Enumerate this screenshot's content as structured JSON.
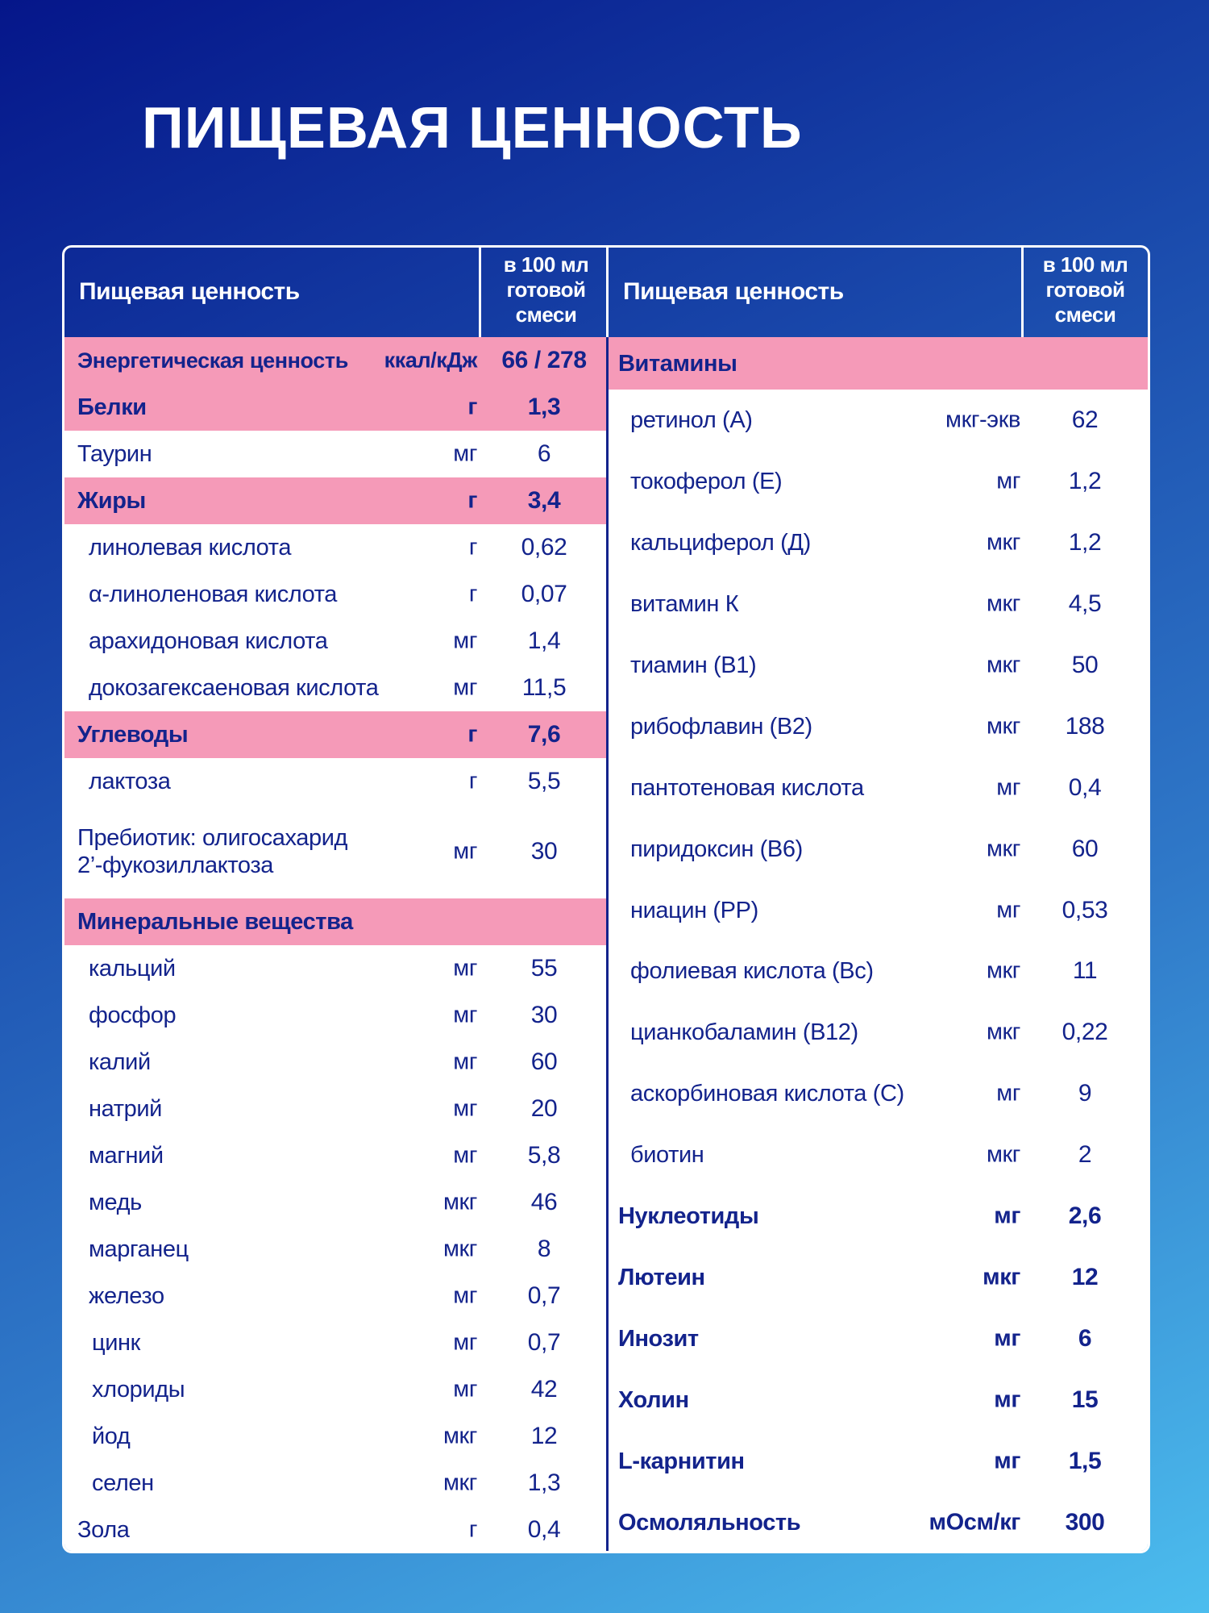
{
  "title": "ПИЩЕВАЯ ЦЕННОСТЬ",
  "colors": {
    "pink": "#f59ab8",
    "navy": "#13238c",
    "white": "#ffffff"
  },
  "left": {
    "header_label": "Пищевая ценность",
    "header_col": [
      "в 100 мл",
      "готовой",
      "смеси"
    ],
    "rows": [
      {
        "name": "Энергетическая ценность",
        "unit": "ккал/кДж",
        "value": "66 / 278",
        "type": "section"
      },
      {
        "name": "Белки",
        "unit": "г",
        "value": "1,3",
        "type": "section"
      },
      {
        "name": "Таурин",
        "unit": "мг",
        "value": "6",
        "type": "plain"
      },
      {
        "name": "Жиры",
        "unit": "г",
        "value": "3,4",
        "type": "section"
      },
      {
        "name": "линолевая кислота",
        "unit": "г",
        "value": "0,62",
        "type": "sub"
      },
      {
        "name": "α-линоленовая кислота",
        "unit": "г",
        "value": "0,07",
        "type": "sub"
      },
      {
        "name": "арахидоновая кислота",
        "unit": "мг",
        "value": "1,4",
        "type": "sub"
      },
      {
        "name": "докозагексаеновая кислота",
        "unit": "мг",
        "value": "11,5",
        "type": "sub"
      },
      {
        "name": "Углеводы",
        "unit": "г",
        "value": "7,6",
        "type": "section"
      },
      {
        "name": "лактоза",
        "unit": "г",
        "value": "5,5",
        "type": "sub"
      },
      {
        "name": "Пребиотик: олигосахарид\n2’-фукозиллактоза",
        "unit": "мг",
        "value": "30",
        "type": "plain2"
      },
      {
        "name": "Минеральные вещества",
        "unit": "",
        "value": "",
        "type": "section"
      },
      {
        "name": "кальций",
        "unit": "мг",
        "value": "55",
        "type": "sub"
      },
      {
        "name": "фосфор",
        "unit": "мг",
        "value": "30",
        "type": "sub"
      },
      {
        "name": "калий",
        "unit": "мг",
        "value": "60",
        "type": "sub"
      },
      {
        "name": "натрий",
        "unit": "мг",
        "value": "20",
        "type": "sub"
      },
      {
        "name": "магний",
        "unit": "мг",
        "value": "5,8",
        "type": "sub"
      },
      {
        "name": "медь",
        "unit": "мкг",
        "value": "46",
        "type": "sub"
      },
      {
        "name": "марганец",
        "unit": "мкг",
        "value": "8",
        "type": "sub"
      },
      {
        "name": "железо",
        "unit": "мг",
        "value": "0,7",
        "type": "sub"
      },
      {
        "name": "цинк",
        "unit": "мг",
        "value": "0,7",
        "type": "sub2"
      },
      {
        "name": "хлориды",
        "unit": "мг",
        "value": "42",
        "type": "sub2"
      },
      {
        "name": "йод",
        "unit": "мкг",
        "value": "12",
        "type": "sub2"
      },
      {
        "name": "селен",
        "unit": "мкг",
        "value": "1,3",
        "type": "sub2"
      },
      {
        "name": "Зола",
        "unit": "г",
        "value": "0,4",
        "type": "plain"
      }
    ]
  },
  "right": {
    "header_label": "Пищевая ценность",
    "header_col": [
      "в 100 мл",
      "готовой",
      "смеси"
    ],
    "section": "Витамины",
    "rows": [
      {
        "name": "ретинол (А)",
        "unit": "мкг-экв",
        "value": "62",
        "type": "sub"
      },
      {
        "name": "токоферол (Е)",
        "unit": "мг",
        "value": "1,2",
        "type": "sub"
      },
      {
        "name": "кальциферол (Д)",
        "unit": "мкг",
        "value": "1,2",
        "type": "sub"
      },
      {
        "name": "витамин К",
        "unit": "мкг",
        "value": "4,5",
        "type": "sub"
      },
      {
        "name": "тиамин (В1)",
        "unit": "мкг",
        "value": "50",
        "type": "sub"
      },
      {
        "name": "рибофлавин (В2)",
        "unit": "мкг",
        "value": "188",
        "type": "sub"
      },
      {
        "name": "пантотеновая кислота",
        "unit": "мг",
        "value": "0,4",
        "type": "sub"
      },
      {
        "name": "пиридоксин (В6)",
        "unit": "мкг",
        "value": "60",
        "type": "sub"
      },
      {
        "name": "ниацин (РР)",
        "unit": "мг",
        "value": "0,53",
        "type": "sub"
      },
      {
        "name": "фолиевая кислота (Вс)",
        "unit": "мкг",
        "value": "11",
        "type": "sub"
      },
      {
        "name": "цианкобаламин (В12)",
        "unit": "мкг",
        "value": "0,22",
        "type": "sub"
      },
      {
        "name": "аскорбиновая кислота (С)",
        "unit": "мг",
        "value": "9",
        "type": "sub"
      },
      {
        "name": "биотин",
        "unit": "мкг",
        "value": "2",
        "type": "sub"
      },
      {
        "name": "Нуклеотиды",
        "unit": "мг",
        "value": "2,6",
        "type": "bold"
      },
      {
        "name": "Лютеин",
        "unit": "мкг",
        "value": "12",
        "type": "bold"
      },
      {
        "name": "Инозит",
        "unit": "мг",
        "value": "6",
        "type": "bold"
      },
      {
        "name": "Холин",
        "unit": "мг",
        "value": "15",
        "type": "bold"
      },
      {
        "name": "L-карнитин",
        "unit": "мг",
        "value": "1,5",
        "type": "bold"
      },
      {
        "name": "Осмоляльность",
        "unit": "мОсм/кг",
        "value": "300",
        "type": "bold"
      }
    ]
  }
}
